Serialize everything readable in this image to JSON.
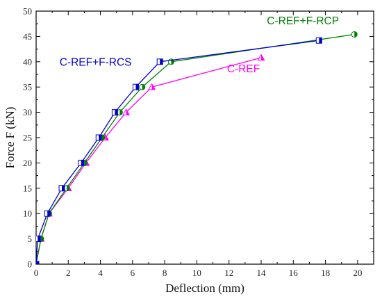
{
  "chart_data": {
    "type": "line",
    "xlabel": "Deflection (mm)",
    "ylabel": "Force F (kN)",
    "xlim": [
      0,
      21
    ],
    "ylim": [
      0,
      50
    ],
    "xticks": [
      0,
      2,
      4,
      6,
      8,
      10,
      12,
      14,
      16,
      18,
      20
    ],
    "yticks": [
      0,
      5,
      10,
      15,
      20,
      25,
      30,
      35,
      40,
      45,
      50
    ],
    "grid": false,
    "series": [
      {
        "name": "C-REF",
        "color": "#ff00ff",
        "marker": "triangle-half",
        "x": [
          0,
          0.3,
          0.8,
          2.0,
          3.1,
          4.3,
          5.6,
          7.2,
          14.0
        ],
        "y": [
          0,
          5,
          10,
          15,
          20,
          25,
          30,
          35,
          40.8
        ]
      },
      {
        "name": "C-REF+F-RCP",
        "color": "#008000",
        "marker": "circle-half",
        "x": [
          0,
          0.3,
          0.8,
          1.9,
          3.0,
          4.1,
          5.2,
          6.6,
          8.4,
          19.8
        ],
        "y": [
          0,
          5,
          10,
          15,
          20,
          25,
          30,
          35,
          40,
          45.4
        ]
      },
      {
        "name": "C-REF+F-RCS",
        "color": "#0000cc",
        "marker": "square-half",
        "x": [
          0,
          0.1,
          0.7,
          1.6,
          2.8,
          3.9,
          4.9,
          6.2,
          7.7,
          17.6
        ],
        "y": [
          0,
          5,
          10,
          15,
          20,
          25,
          30,
          35,
          40,
          44.2
        ]
      }
    ],
    "annotations": [
      {
        "series": "C-REF+F-RCS",
        "text": "C-REF+F-RCS",
        "color": "#0000cc",
        "x": 3.7,
        "y": 39.2
      },
      {
        "series": "C-REF+F-RCP",
        "text": "C-REF+F-RCP",
        "color": "#008000",
        "x": 16.6,
        "y": 47.4
      },
      {
        "series": "C-REF",
        "text": "C-REF",
        "color": "#ff00ff",
        "x": 12.9,
        "y": 37.9
      }
    ]
  }
}
